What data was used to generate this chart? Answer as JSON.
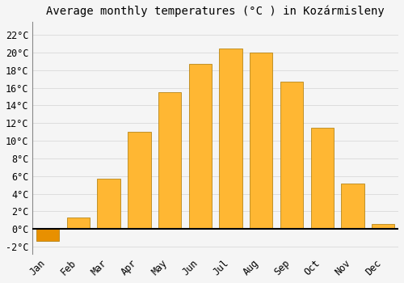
{
  "title": "Average monthly temperatures (°C ) in Kozármisleny",
  "months": [
    "Jan",
    "Feb",
    "Mar",
    "Apr",
    "May",
    "Jun",
    "Jul",
    "Aug",
    "Sep",
    "Oct",
    "Nov",
    "Dec"
  ],
  "values": [
    -1.3,
    1.3,
    5.7,
    11.0,
    15.5,
    18.7,
    20.5,
    20.0,
    16.7,
    11.5,
    5.2,
    0.6
  ],
  "bar_color_light": "#FFB733",
  "bar_color_dark": "#E89000",
  "bar_edge_color": "#AA7700",
  "background_color": "#F5F5F5",
  "grid_color": "#DDDDDD",
  "ylim": [
    -2.8,
    23.5
  ],
  "yticks": [
    -2,
    0,
    2,
    4,
    6,
    8,
    10,
    12,
    14,
    16,
    18,
    20,
    22
  ],
  "title_fontsize": 10,
  "tick_fontsize": 8.5,
  "bar_width": 0.75
}
